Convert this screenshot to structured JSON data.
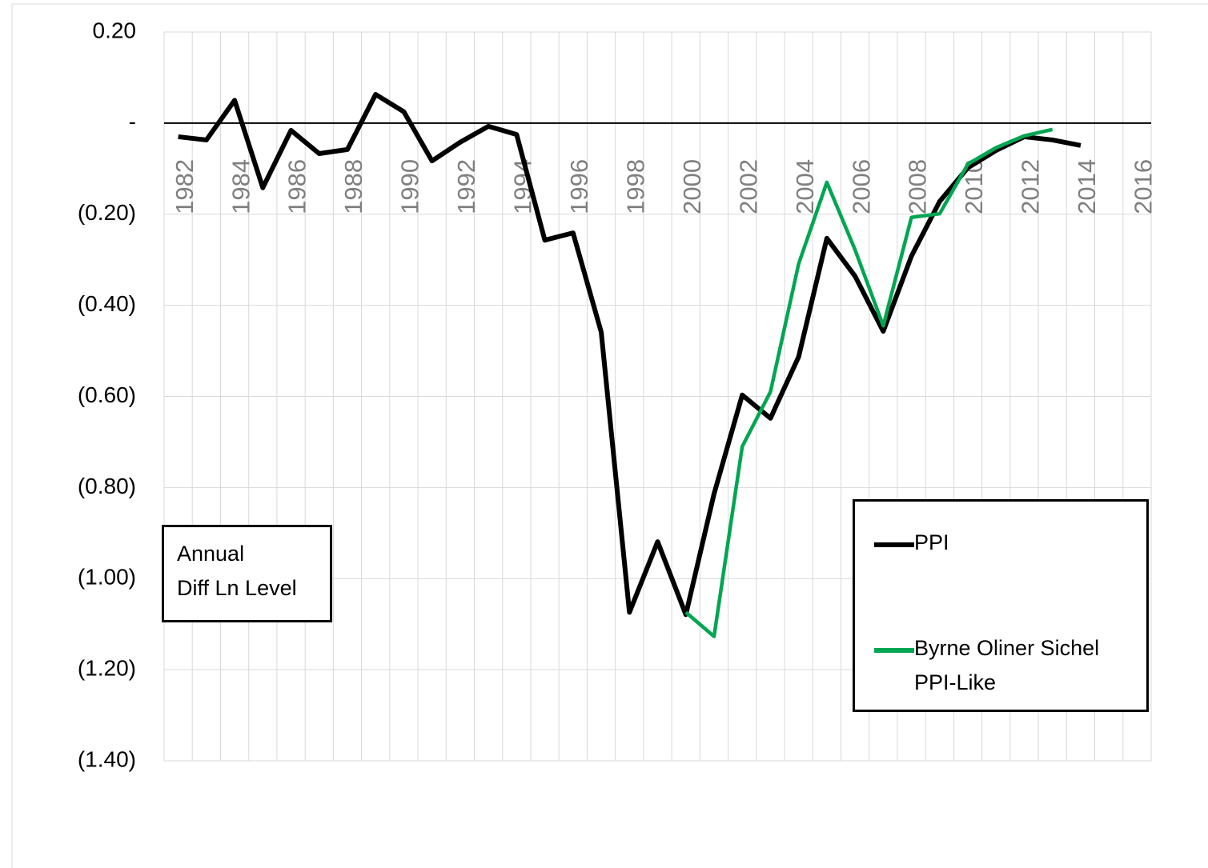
{
  "chart_data": {
    "type": "line",
    "annotation": [
      "Annual",
      "Diff Ln Level"
    ],
    "categories": [
      1982,
      null,
      1984,
      null,
      1986,
      null,
      1988,
      null,
      1990,
      null,
      1992,
      null,
      1994,
      null,
      1996,
      null,
      1998,
      null,
      2000,
      null,
      2002,
      null,
      2004,
      null,
      2006,
      null,
      2008,
      null,
      2010,
      null,
      2012,
      null,
      2014,
      null,
      2016
    ],
    "series": [
      {
        "name": "PPI",
        "color": "#000000",
        "values": [
          -0.03,
          -0.037,
          0.05,
          -0.142,
          -0.016,
          -0.067,
          -0.058,
          0.063,
          0.025,
          -0.083,
          -0.042,
          -0.007,
          -0.025,
          -0.257,
          -0.241,
          -0.459,
          -1.074,
          -0.919,
          -1.079,
          -0.814,
          -0.597,
          -0.648,
          -0.513,
          -0.253,
          -0.336,
          -0.457,
          -0.292,
          -0.172,
          -0.098,
          -0.06,
          -0.03,
          -0.037,
          -0.049,
          null,
          null
        ]
      },
      {
        "name": "Byrne Oliner Sichel PPI-Like",
        "color": "#00a651",
        "values": [
          null,
          null,
          null,
          null,
          null,
          null,
          null,
          null,
          null,
          null,
          null,
          null,
          null,
          null,
          null,
          null,
          null,
          null,
          -1.074,
          -1.127,
          -0.71,
          -0.59,
          -0.309,
          -0.13,
          -0.278,
          -0.445,
          -0.207,
          -0.199,
          -0.09,
          -0.054,
          -0.028,
          -0.014,
          null,
          null,
          null
        ]
      }
    ],
    "ylim": [
      -1.4,
      0.2
    ],
    "yticks": [
      {
        "value": 0.2,
        "label": "0.20"
      },
      {
        "value": 0,
        "label": "-"
      },
      {
        "value": -0.2,
        "label": "(0.20)"
      },
      {
        "value": -0.4,
        "label": "(0.40)"
      },
      {
        "value": -0.6,
        "label": "(0.60)"
      },
      {
        "value": -0.8,
        "label": "(0.80)"
      },
      {
        "value": -1.0,
        "label": "(1.00)"
      },
      {
        "value": -1.2,
        "label": "(1.20)"
      },
      {
        "value": -1.4,
        "label": "(1.40)"
      }
    ],
    "grid": true
  }
}
